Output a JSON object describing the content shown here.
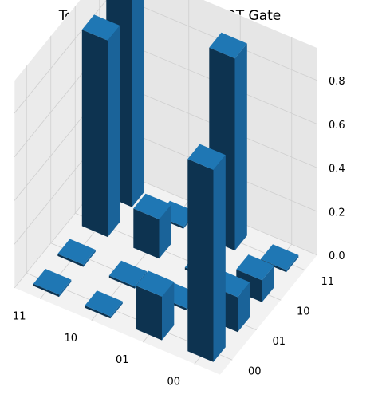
{
  "chart_data": {
    "type": "bar3d",
    "title": "Tomography of Noisy CNOT Gate",
    "x_categories": [
      "00",
      "01",
      "10",
      "11"
    ],
    "y_categories": [
      "00",
      "01",
      "10",
      "11"
    ],
    "zlim": [
      0,
      0.95
    ],
    "z_ticks": [
      "0.0",
      "0.2",
      "0.4",
      "0.6",
      "0.8"
    ],
    "bar_color": "#1f77b4",
    "grid": true,
    "bars": [
      {
        "x": "00",
        "y": "00",
        "value": 0.88
      },
      {
        "x": "00",
        "y": "01",
        "value": 0.16
      },
      {
        "x": "00",
        "y": "10",
        "value": 0.1
      },
      {
        "x": "00",
        "y": "11",
        "value": 0.01
      },
      {
        "x": "01",
        "y": "00",
        "value": 0.2
      },
      {
        "x": "01",
        "y": "01",
        "value": 0.01
      },
      {
        "x": "01",
        "y": "10",
        "value": 0.01
      },
      {
        "x": "01",
        "y": "11",
        "value": 0.88
      },
      {
        "x": "10",
        "y": "00",
        "value": 0.01
      },
      {
        "x": "10",
        "y": "01",
        "value": 0.01
      },
      {
        "x": "10",
        "y": "10",
        "value": 0.18
      },
      {
        "x": "10",
        "y": "11",
        "value": 0.01
      },
      {
        "x": "11",
        "y": "00",
        "value": 0.01
      },
      {
        "x": "11",
        "y": "01",
        "value": 0.01
      },
      {
        "x": "11",
        "y": "10",
        "value": 0.9
      },
      {
        "x": "11",
        "y": "11",
        "value": 0.95
      }
    ]
  }
}
